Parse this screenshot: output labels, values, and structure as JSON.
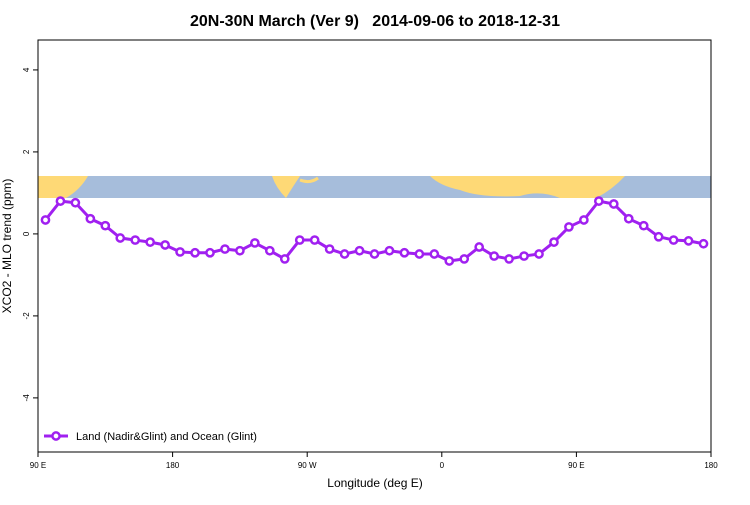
{
  "chart_data": {
    "type": "line",
    "title": "20N-30N March (Ver 9)   2014-09-06 to 2018-12-31",
    "x_label": "Longitude (deg E)",
    "y_label": "XCO2 - MLO trend (ppm)",
    "x": [
      95,
      105,
      115,
      125,
      135,
      145,
      155,
      165,
      175,
      185,
      195,
      205,
      215,
      225,
      235,
      245,
      255,
      265,
      275,
      285,
      295,
      305,
      315,
      325,
      335,
      345,
      355,
      365,
      375,
      385,
      395,
      405,
      415,
      425,
      435,
      445,
      455,
      465,
      475,
      485,
      495,
      505,
      515,
      525,
      535
    ],
    "series": [
      {
        "name": "Land (Nadir&Glint) and Ocean (Glint)",
        "color": "#a020f0",
        "values": [
          0.34,
          0.8,
          0.76,
          0.37,
          0.2,
          -0.1,
          -0.15,
          -0.2,
          -0.27,
          -0.44,
          -0.46,
          -0.46,
          -0.37,
          -0.41,
          -0.22,
          -0.41,
          -0.61,
          -0.15,
          -0.15,
          -0.37,
          -0.49,
          -0.41,
          -0.49,
          -0.41,
          -0.46,
          -0.49,
          -0.49,
          -0.66,
          -0.61,
          -0.32,
          -0.54,
          -0.61,
          -0.54,
          -0.49,
          -0.2,
          0.17,
          0.34,
          0.8,
          0.73,
          0.37,
          0.2,
          -0.07,
          -0.15,
          -0.17,
          -0.24
        ]
      }
    ],
    "xlim": [
      90,
      540
    ],
    "xticks": [
      {
        "value": 90,
        "label": "90 E"
      },
      180,
      {
        "value": 270,
        "label": "90 W"
      },
      {
        "value": 360,
        "label": "0"
      },
      {
        "value": 450,
        "label": "90 E"
      },
      {
        "value": 540,
        "label": "180"
      }
    ],
    "ylim": [
      -5.32,
      4.73
    ],
    "yticks": [
      -4,
      -2,
      0,
      2,
      4
    ],
    "legend": "bottom-left"
  }
}
